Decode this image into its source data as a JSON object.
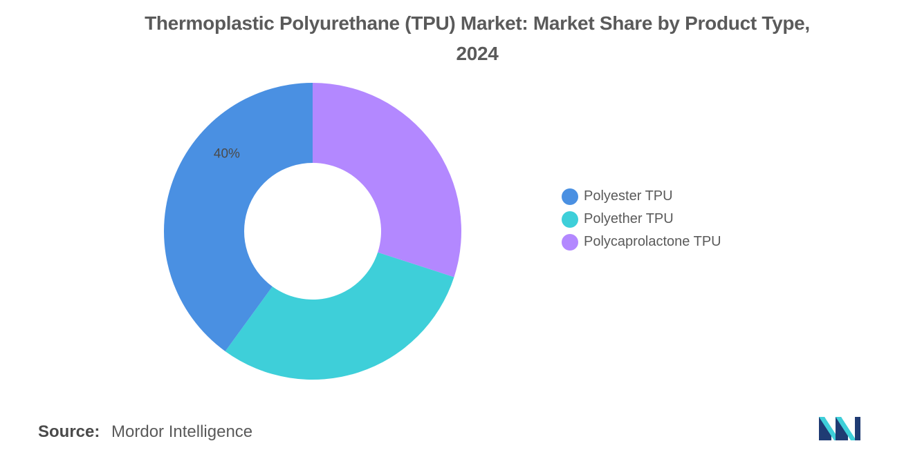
{
  "chart_data": {
    "type": "pie",
    "donut": true,
    "title": "Thermoplastic Polyurethane (TPU) Market: Market Share by Product Type, 2024",
    "title_lines": [
      "Thermoplastic Polyurethane (TPU) Market: Market Share by Product Type,",
      "2024"
    ],
    "series": [
      {
        "name": "Polyester TPU",
        "value": 40,
        "color": "#4a90e2",
        "data_label": "40%"
      },
      {
        "name": "Polyether TPU",
        "value": 30,
        "color": "#3ecfd9",
        "data_label": ""
      },
      {
        "name": "Polycaprolactone TPU",
        "value": 30,
        "color": "#b388ff",
        "data_label": ""
      }
    ],
    "legend_position": "right"
  },
  "source": {
    "label": "Source:",
    "text": "Mordor Intelligence"
  },
  "logo": {
    "icon": "mordor-intelligence-logo",
    "colors": [
      "#1f3b73",
      "#3ecfd9"
    ]
  }
}
